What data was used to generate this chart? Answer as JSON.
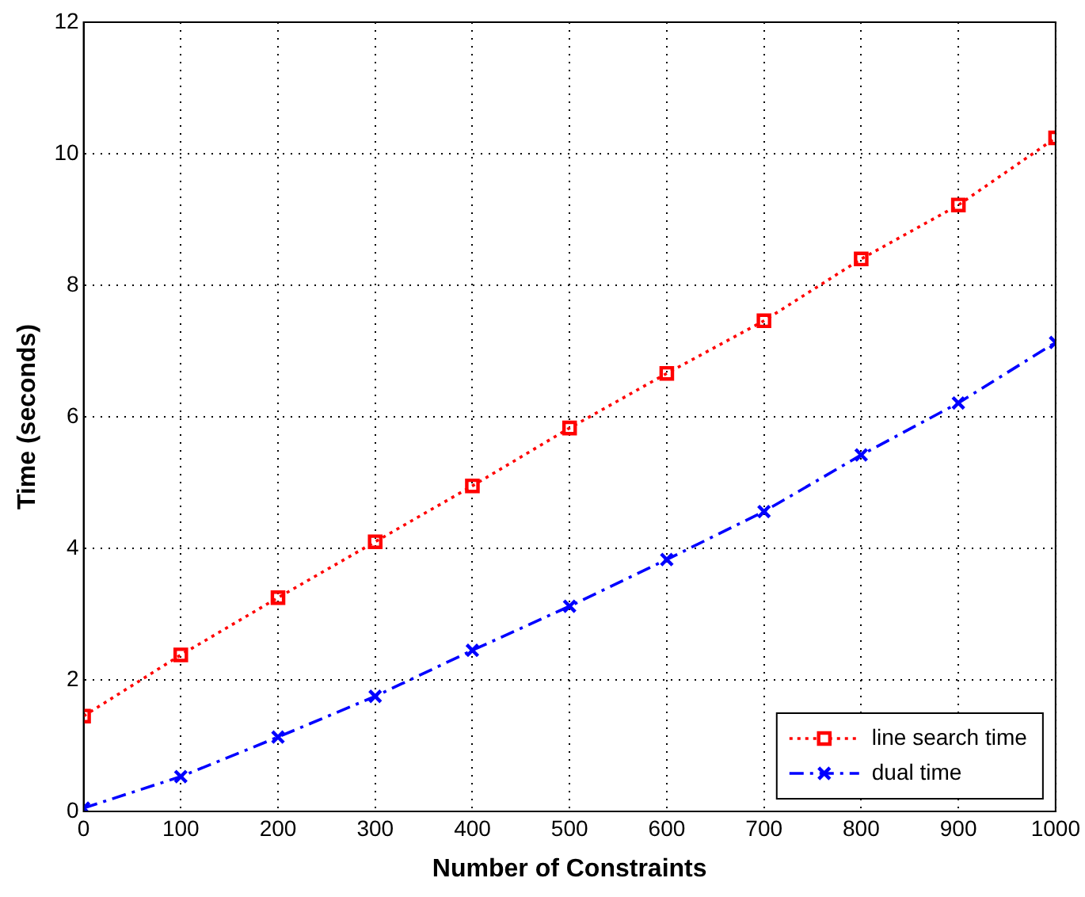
{
  "chart_data": {
    "type": "line",
    "xlabel": "Number of Constraints",
    "ylabel": "Time (seconds)",
    "x": [
      0,
      100,
      200,
      300,
      400,
      500,
      600,
      700,
      800,
      900,
      1000
    ],
    "series": [
      {
        "name": "line search time",
        "color": "#ff0000",
        "marker": "square",
        "line_style": "dotted",
        "values": [
          1.45,
          2.38,
          3.25,
          4.1,
          4.95,
          5.83,
          6.66,
          7.46,
          8.4,
          9.22,
          10.24
        ]
      },
      {
        "name": "dual time",
        "color": "#0000ff",
        "marker": "cross",
        "line_style": "dashed",
        "values": [
          0.05,
          0.53,
          1.13,
          1.75,
          2.45,
          3.12,
          3.83,
          4.56,
          5.42,
          6.21,
          7.13
        ]
      }
    ],
    "xlim": [
      0,
      1000
    ],
    "xticks": [
      0,
      100,
      200,
      300,
      400,
      500,
      600,
      700,
      800,
      900,
      1000
    ],
    "ylim": [
      0,
      12
    ],
    "yticks": [
      0,
      2,
      4,
      6,
      8,
      10,
      12
    ],
    "grid": true,
    "legend": "bottom right"
  }
}
